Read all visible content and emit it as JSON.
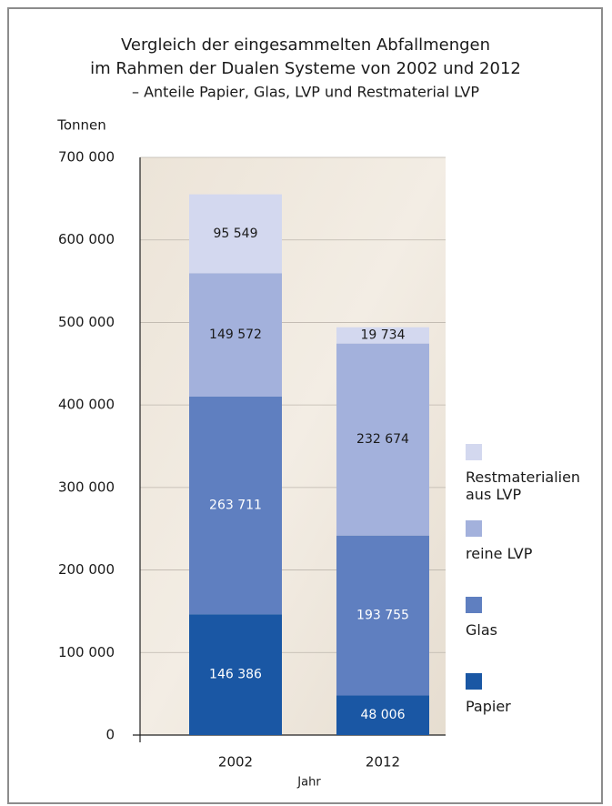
{
  "chart_data": {
    "type": "stacked-bar",
    "title": [
      "Vergleich der eingesammelten Abfallmengen",
      "im Rahmen der Dualen Systeme von 2002 und 2012"
    ],
    "subtitle": "– Anteile Papier, Glas, LVP und Restmaterial LVP",
    "y_label": "Tonnen",
    "x_label": "Jahr",
    "categories": [
      "2002",
      "2012"
    ],
    "series": [
      {
        "name": "Papier",
        "color": "#1a57a4",
        "values": [
          146386,
          48006
        ],
        "value_labels": [
          "146 386",
          "48 006"
        ]
      },
      {
        "name": "Glas",
        "color": "#5f7fc0",
        "values": [
          263711,
          193755
        ],
        "value_labels": [
          "263 711",
          "193 755"
        ]
      },
      {
        "name": "reine LVP",
        "color": "#a3b1dc",
        "values": [
          149572,
          232674
        ],
        "value_labels": [
          "149 572",
          "232 674"
        ]
      },
      {
        "name": "Restmaterialien aus LVP",
        "color": "#d3d8ef",
        "values": [
          95549,
          19734
        ],
        "value_labels": [
          "95 549",
          "19 734"
        ]
      }
    ],
    "ylim": [
      0,
      700000
    ],
    "yticks": [
      0,
      {
        "value": 100000,
        "label": "100 000"
      },
      {
        "value": 200000,
        "label": "200 000"
      },
      {
        "value": 300000,
        "label": "300 000"
      },
      {
        "value": 400000,
        "label": "400 000"
      },
      {
        "value": 500000,
        "label": "500 000"
      },
      {
        "value": 600000,
        "label": "600 000"
      },
      {
        "value": 700000,
        "label": "700 000"
      }
    ],
    "grid": true
  }
}
